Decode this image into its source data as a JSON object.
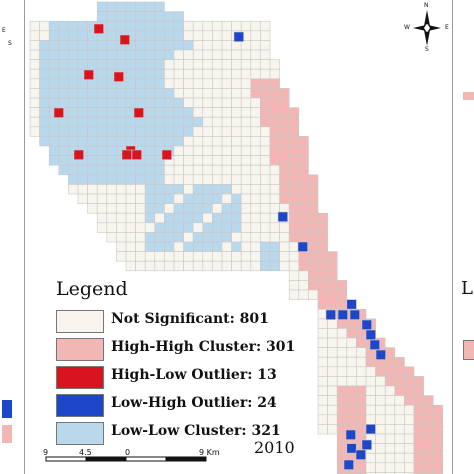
{
  "map": {
    "year": "2010",
    "legend": {
      "title": "Legend",
      "items": [
        {
          "label": "Not Significant: 801",
          "color": "#f7f5ee",
          "count": 801
        },
        {
          "label": "High-High Cluster: 301",
          "color": "#f2b6b4",
          "count": 301
        },
        {
          "label": "High-Low Outlier: 13",
          "color": "#d9141e",
          "count": 13
        },
        {
          "label": "Low-High Outlier: 24",
          "color": "#1e46c8",
          "count": 24
        },
        {
          "label": "Low-Low Cluster: 321",
          "color": "#b9d8ec",
          "count": 321
        }
      ]
    },
    "scale_bar": {
      "ticks": [
        "9",
        "4.5",
        "0",
        "9 Km"
      ]
    },
    "compass": {
      "n": "N",
      "s": "S",
      "e": "E",
      "w": "W"
    },
    "left_panel_compass": {
      "s": "S",
      "e": "E"
    },
    "right_panel_legend_fragment": "L",
    "grid_color": "#c8c8c8"
  }
}
